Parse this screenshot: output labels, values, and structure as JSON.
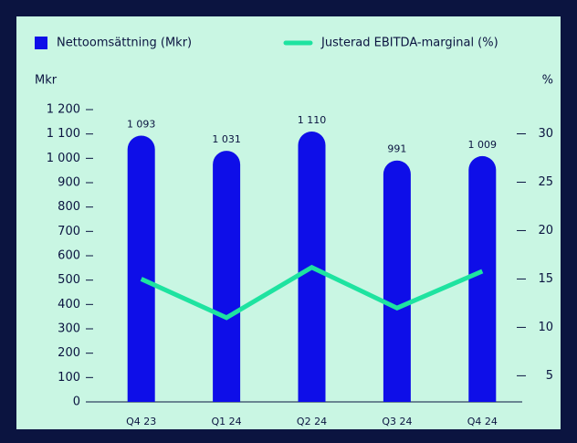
{
  "chart_data": {
    "type": "bar-line",
    "categories": [
      "Q4 23",
      "Q1 24",
      "Q2 24",
      "Q3 24",
      "Q4 24"
    ],
    "series": [
      {
        "name": "Nettoomsättning (Mkr)",
        "type": "bar",
        "color": "#0e0ee8",
        "values": [
          1093,
          1031,
          1110,
          991,
          1009
        ],
        "value_labels": [
          "1 093",
          "1 031",
          "1 110",
          "991",
          "1 009"
        ]
      },
      {
        "name": "Justerad EBITDA-marginal (%)",
        "type": "line",
        "color": "#1ee3a0",
        "axis": "y2",
        "values": [
          15,
          11,
          16.2,
          12,
          15.8
        ]
      }
    ],
    "ylabel": "Mkr",
    "y2label": "%",
    "ylim": [
      0,
      1200
    ],
    "yticks": [
      0,
      100,
      200,
      300,
      400,
      500,
      600,
      700,
      800,
      900,
      {
        "value": 1000,
        "label": "1 000"
      },
      {
        "value": 1100,
        "label": "1 100"
      },
      {
        "value": 1200,
        "label": "1 200"
      }
    ],
    "y2lim": [
      2.3,
      32.5
    ],
    "y2ticks": [
      5,
      10,
      15,
      20,
      25,
      30
    ]
  }
}
